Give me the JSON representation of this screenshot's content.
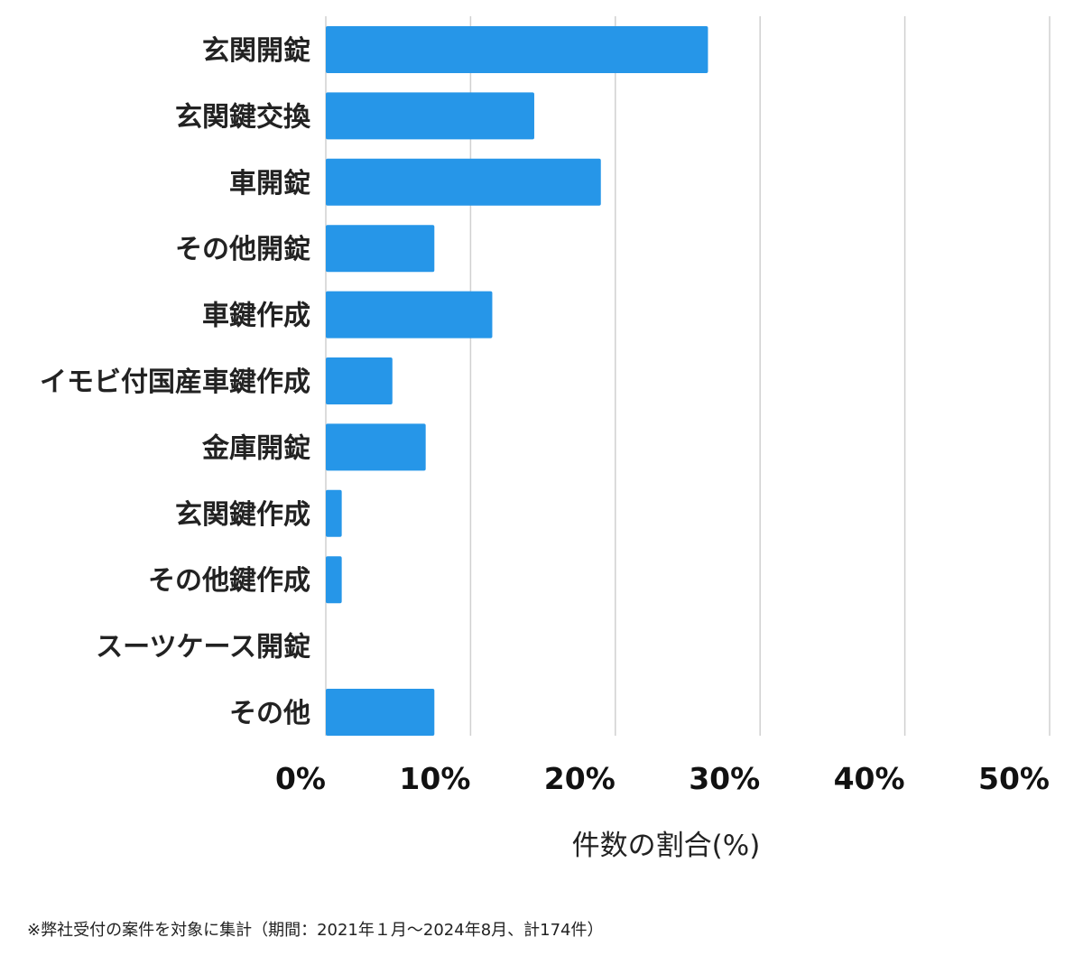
{
  "chart_data": {
    "type": "bar",
    "orientation": "horizontal",
    "categories": [
      "玄関開錠",
      "玄関鍵交換",
      "車開錠",
      "その他開錠",
      "車鍵作成",
      "イモビ付国産車鍵作成",
      "金庫開錠",
      "玄関鍵作成",
      "その他鍵作成",
      "スーツケース開錠",
      "その他"
    ],
    "values": [
      26.4,
      14.4,
      19.0,
      7.5,
      11.5,
      4.6,
      6.9,
      1.1,
      1.1,
      0,
      7.5
    ],
    "xticks": [
      "0%",
      "10%",
      "20%",
      "30%",
      "40%",
      "50%"
    ],
    "xlim": [
      0,
      50
    ],
    "xlabel": "件数の割合(%)",
    "ylabel": "",
    "title": "",
    "grid": "vertical",
    "legend": "none",
    "bar_color": "#2696e8",
    "grid_color": "#d0d0d0"
  },
  "footnote": "※弊社受付の案件を対象に集計（期間：2021年１月〜2024年8月、計174件）"
}
